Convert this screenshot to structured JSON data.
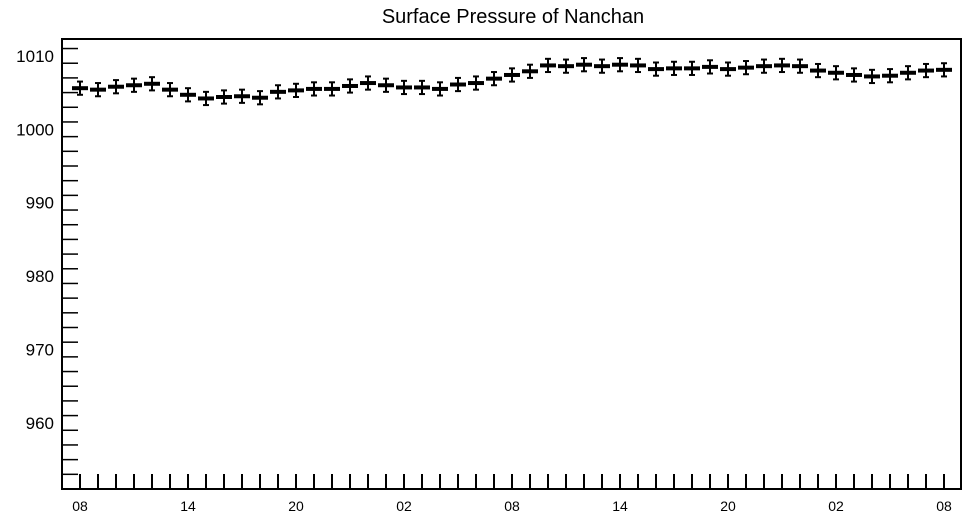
{
  "chart_data": {
    "type": "scatter",
    "title": "Surface Pressure of Nanchan",
    "xlabel": "",
    "ylabel": "",
    "ylim": [
      951,
      1012.3
    ],
    "yticks": [
      960,
      970,
      980,
      990,
      1000,
      1010
    ],
    "xtick_labels": [
      "08",
      "14",
      "20",
      "02",
      "08",
      "14",
      "20",
      "02",
      "08"
    ],
    "x_hours": [
      0,
      6,
      12,
      18,
      24,
      30,
      36,
      42,
      48
    ],
    "error_bar": 0.9,
    "grid": false,
    "series": [
      {
        "name": "",
        "x": [
          0,
          1,
          2,
          3,
          4,
          5,
          6,
          7,
          8,
          9,
          10,
          11,
          12,
          13,
          14,
          15,
          16,
          17,
          18,
          19,
          20,
          21,
          22,
          23,
          24,
          25,
          26,
          27,
          28,
          29,
          30,
          31,
          32,
          33,
          34,
          35,
          36,
          37,
          38,
          39,
          40,
          41,
          42,
          43,
          44,
          45,
          46,
          47,
          48
        ],
        "y": [
          1005.6,
          1005.4,
          1005.8,
          1006.0,
          1006.2,
          1005.4,
          1004.7,
          1004.2,
          1004.4,
          1004.5,
          1004.3,
          1005.1,
          1005.3,
          1005.5,
          1005.5,
          1005.9,
          1006.3,
          1006.0,
          1005.7,
          1005.7,
          1005.5,
          1006.1,
          1006.3,
          1006.9,
          1007.4,
          1007.9,
          1008.7,
          1008.6,
          1008.8,
          1008.6,
          1008.8,
          1008.7,
          1008.2,
          1008.3,
          1008.3,
          1008.5,
          1008.2,
          1008.4,
          1008.6,
          1008.7,
          1008.6,
          1008.0,
          1007.7,
          1007.4,
          1007.2,
          1007.3,
          1007.7,
          1008.0,
          1008.1
        ]
      }
    ]
  }
}
